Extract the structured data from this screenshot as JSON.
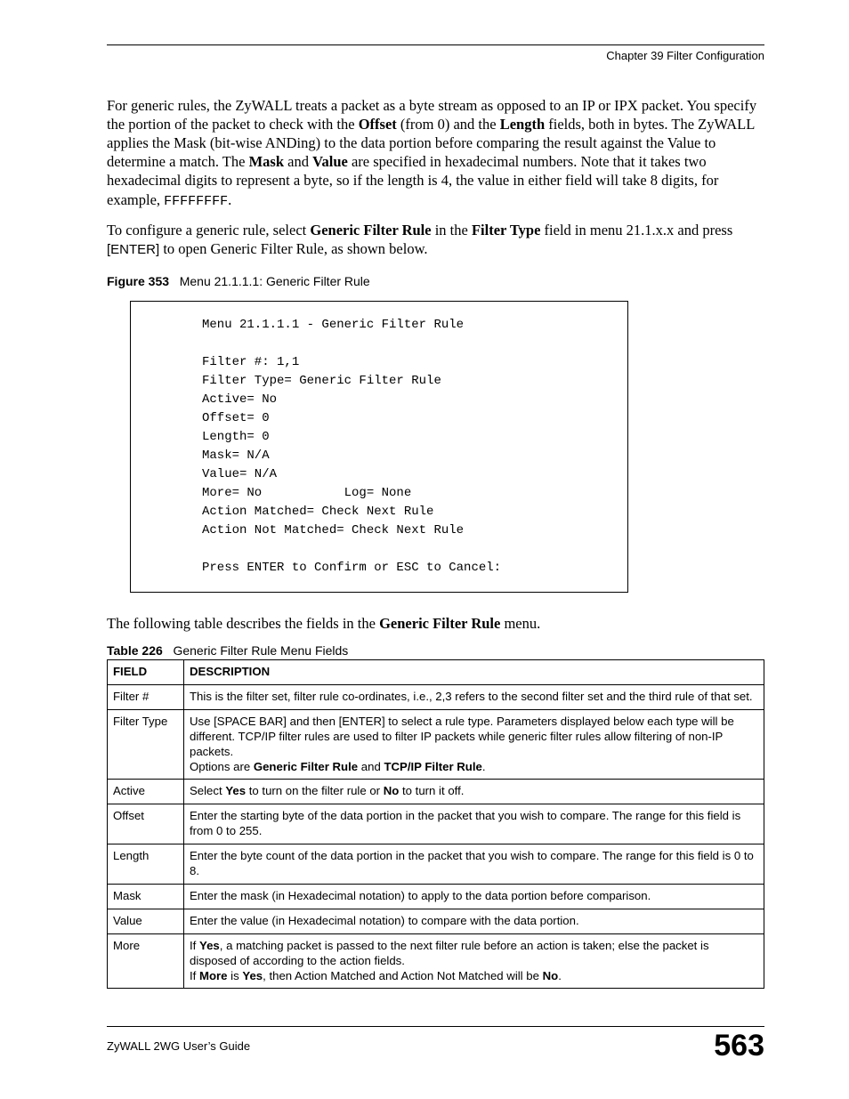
{
  "header": {
    "chapter": "Chapter 39 Filter Configuration"
  },
  "paragraphs": {
    "p1_pre": "For generic rules, the ZyWALL treats a packet as a byte stream as opposed to an IP or IPX packet. You specify the portion of the packet to check with the ",
    "p1_b1": "Offset",
    "p1_mid1": " (from 0) and the ",
    "p1_b2": "Length",
    "p1_mid2": " fields, both in bytes. The ZyWALL applies the Mask (bit-wise ANDing) to the data portion before comparing the result against the Value to determine a match. The ",
    "p1_b3": "Mask",
    "p1_mid3": " and ",
    "p1_b4": "Value",
    "p1_mid4": " are specified in hexadecimal numbers. Note that it takes two hexadecimal digits to represent a byte, so if the length is 4, the value in either field will take 8 digits, for example, ",
    "p1_code": "FFFFFFFF",
    "p1_end": ".",
    "p2_pre": "To configure a generic rule, select ",
    "p2_b1": "Generic Filter Rule",
    "p2_mid1": " in the ",
    "p2_b2": "Filter Type",
    "p2_mid2": " field in menu 21.1.x.x and press ",
    "p2_sans": "[ENTER]",
    "p2_end": " to open Generic Filter Rule, as shown below.",
    "p3_pre": "The following table describes the fields in the ",
    "p3_b1": "Generic Filter Rule",
    "p3_end": " menu."
  },
  "figure": {
    "label": "Figure 353",
    "title": "Menu 21.1.1.1: Generic Filter Rule",
    "code": "Menu 21.1.1.1 - Generic Filter Rule\n\nFilter #: 1,1\nFilter Type= Generic Filter Rule\nActive= No\nOffset= 0\nLength= 0\nMask= N/A\nValue= N/A\nMore= No           Log= None\nAction Matched= Check Next Rule\nAction Not Matched= Check Next Rule\n\nPress ENTER to Confirm or ESC to Cancel:"
  },
  "table": {
    "label": "Table 226",
    "title": "Generic Filter Rule Menu Fields",
    "head_field": "FIELD",
    "head_desc": "DESCRIPTION",
    "rows": {
      "r0": {
        "field": "Filter #",
        "desc": "This is the filter set, filter rule co-ordinates, i.e., 2,3 refers to the second filter set and the third rule of that set."
      },
      "r1": {
        "field": "Filter Type",
        "line1": "Use [SPACE BAR] and then [ENTER] to select a rule type. Parameters displayed below each type will be different. TCP/IP filter rules are used to filter IP packets while generic filter rules allow filtering of non-IP packets.",
        "line2_pre": "Options are ",
        "line2_b1": "Generic Filter Rule",
        "line2_mid": " and ",
        "line2_b2": "TCP/IP Filter Rule",
        "line2_end": "."
      },
      "r2": {
        "field": "Active",
        "pre": "Select ",
        "b1": "Yes",
        "mid": " to turn on the filter rule or ",
        "b2": "No",
        "end": " to turn it off."
      },
      "r3": {
        "field": "Offset",
        "desc": "Enter the starting byte of the data portion in the packet that you wish to compare. The range for this field is from 0 to 255."
      },
      "r4": {
        "field": "Length",
        "desc": "Enter the byte count of the data portion in the packet that you wish to compare. The range for this field is 0 to 8."
      },
      "r5": {
        "field": "Mask",
        "desc": "Enter the mask (in Hexadecimal notation) to apply to the data portion before comparison."
      },
      "r6": {
        "field": "Value",
        "desc": "Enter the value (in Hexadecimal notation) to compare with the data portion."
      },
      "r7": {
        "field": "More",
        "l1_pre": "If ",
        "l1_b1": "Yes",
        "l1_end": ", a matching packet is passed to the next filter rule before an action is taken; else the packet is disposed of according to the action fields.",
        "l2_pre": "If ",
        "l2_b1": "More",
        "l2_mid1": " is ",
        "l2_b2": "Yes",
        "l2_mid2": ", then Action Matched and Action Not Matched will be ",
        "l2_b3": "No",
        "l2_end": "."
      }
    }
  },
  "footer": {
    "guide": "ZyWALL 2WG User’s Guide",
    "page": "563"
  }
}
